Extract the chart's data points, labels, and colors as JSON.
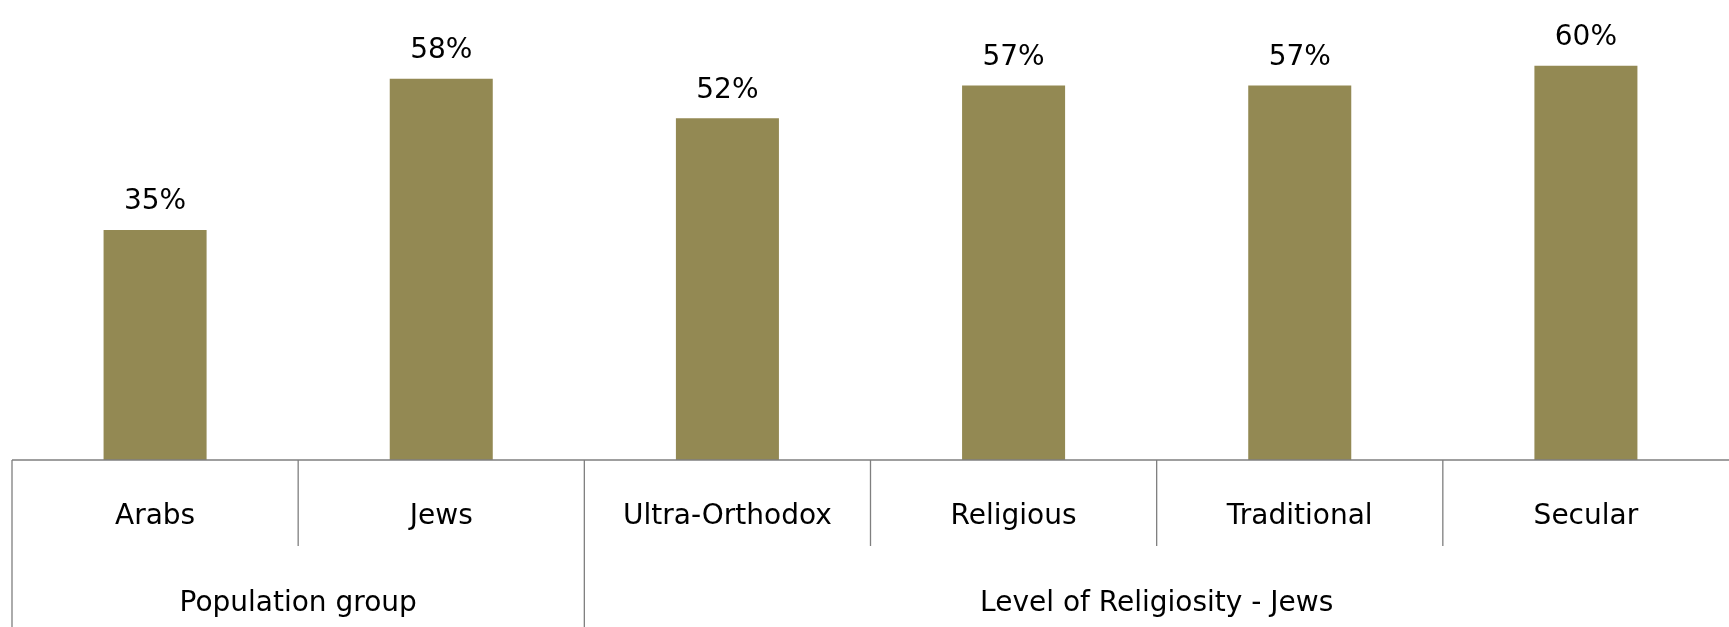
{
  "chart_data": {
    "type": "bar",
    "categories": [
      "Arabs",
      "Jews",
      "Ultra-Orthodox",
      "Religious",
      "Traditional",
      "Secular"
    ],
    "values": [
      35,
      58,
      52,
      57,
      57,
      60
    ],
    "value_labels": [
      "35%",
      "58%",
      "52%",
      "57%",
      "57%",
      "60%"
    ],
    "color": "#938953",
    "tick_labels": "x",
    "annotations": [
      "Population group",
      "Level of Religiosity - Jews"
    ]
  }
}
